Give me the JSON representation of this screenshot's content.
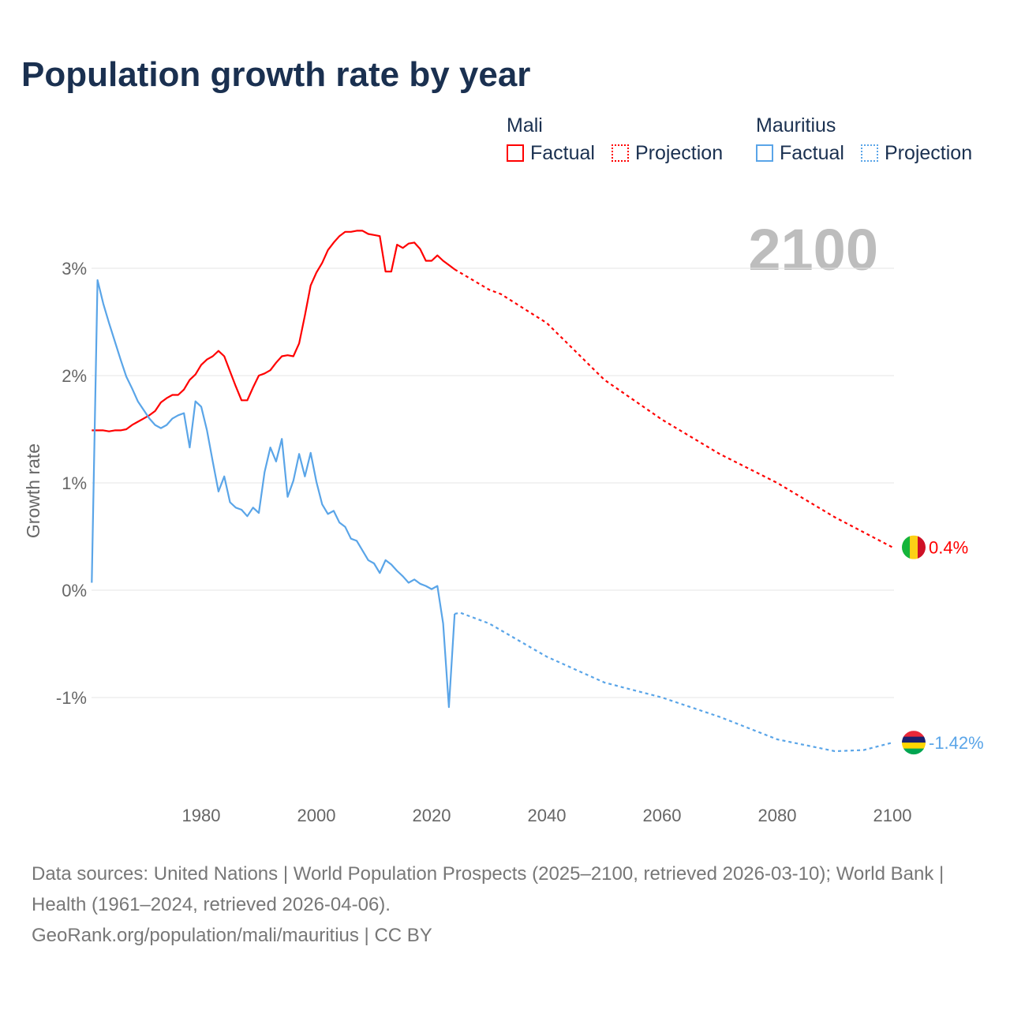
{
  "title": "Population growth rate by year",
  "legend": {
    "groups": [
      {
        "name": "Mali",
        "factual": "Factual",
        "projection": "Projection",
        "color": "#ff0000"
      },
      {
        "name": "Mauritius",
        "factual": "Factual",
        "projection": "Projection",
        "color": "#5aa5e8"
      }
    ]
  },
  "year_label": "2100",
  "source_line1": "Data sources: United Nations | World Population Prospects (2025–2100, retrieved 2026-03-10); World Bank | Health (1961–2024, retrieved 2026-04-06).",
  "source_line2": "GeoRank.org/population/mali/mauritius | CC BY",
  "chart_data": {
    "type": "line",
    "title": "Population growth rate by year",
    "xlabel": "",
    "ylabel": "Growth rate",
    "xlim": [
      1961,
      2100
    ],
    "ylim": [
      -1.8,
      3.6
    ],
    "xticks": [
      1980,
      2000,
      2020,
      2040,
      2060,
      2080,
      2100
    ],
    "xtick_labels": [
      "1980",
      "2000",
      "2020",
      "2040",
      "2060",
      "2080",
      "2100"
    ],
    "yticks": [
      3,
      2,
      1,
      0,
      -1
    ],
    "ytick_labels": [
      "3%",
      "2%",
      "1%",
      "0%",
      "-1%"
    ],
    "series": [
      {
        "name": "Mali Factual",
        "color": "#ff0000",
        "dashed": false,
        "start": 1961,
        "values": [
          1.49,
          1.49,
          1.49,
          1.48,
          1.49,
          1.49,
          1.5,
          1.54,
          1.57,
          1.6,
          1.63,
          1.67,
          1.75,
          1.79,
          1.82,
          1.82,
          1.87,
          1.96,
          2.01,
          2.1,
          2.15,
          2.18,
          2.23,
          2.18,
          2.04,
          1.9,
          1.77,
          1.77,
          1.89,
          2.0,
          2.02,
          2.05,
          2.12,
          2.18,
          2.19,
          2.18,
          2.3,
          2.56,
          2.84,
          2.96,
          3.05,
          3.17,
          3.24,
          3.3,
          3.34,
          3.34,
          3.35,
          3.35,
          3.32,
          3.31,
          3.3,
          2.97,
          2.97,
          3.22,
          3.19,
          3.23,
          3.24,
          3.18,
          3.07,
          3.07,
          3.12,
          3.07,
          3.03,
          2.99
        ]
      },
      {
        "name": "Mali Projection",
        "color": "#ff0000",
        "dashed": true,
        "x": [
          2024,
          2030,
          2032,
          2040,
          2050,
          2060,
          2070,
          2080,
          2090,
          2100
        ],
        "values": [
          2.99,
          2.8,
          2.76,
          2.49,
          1.96,
          1.59,
          1.27,
          1.0,
          0.68,
          0.4
        ]
      },
      {
        "name": "Mauritius Factual",
        "color": "#5aa5e8",
        "dashed": false,
        "start": 1961,
        "values": [
          0.07,
          2.89,
          2.67,
          2.49,
          2.32,
          2.15,
          1.99,
          1.88,
          1.76,
          1.68,
          1.6,
          1.54,
          1.51,
          1.54,
          1.6,
          1.63,
          1.65,
          1.33,
          1.76,
          1.71,
          1.49,
          1.2,
          0.92,
          1.06,
          0.82,
          0.77,
          0.75,
          0.69,
          0.77,
          0.72,
          1.1,
          1.33,
          1.2,
          1.41,
          0.87,
          1.02,
          1.27,
          1.06,
          1.28,
          1.01,
          0.8,
          0.71,
          0.74,
          0.63,
          0.59,
          0.48,
          0.46,
          0.37,
          0.28,
          0.25,
          0.16,
          0.28,
          0.24,
          0.18,
          0.13,
          0.07,
          0.1,
          0.06,
          0.04,
          0.01,
          0.04,
          -0.31,
          -1.09,
          -0.22
        ]
      },
      {
        "name": "Mauritius Projection",
        "color": "#5aa5e8",
        "dashed": true,
        "x": [
          2024,
          2025,
          2030,
          2040,
          2050,
          2060,
          2070,
          2080,
          2090,
          2095,
          2100
        ],
        "values": [
          -0.22,
          -0.21,
          -0.31,
          -0.62,
          -0.86,
          -1.0,
          -1.18,
          -1.39,
          -1.5,
          -1.49,
          -1.42
        ]
      }
    ],
    "end_labels": [
      {
        "country": "Mali",
        "text": "0.4%",
        "value": 0.4,
        "color": "#ff0000"
      },
      {
        "country": "Mauritius",
        "text": "-1.42%",
        "value": -1.42,
        "color": "#5aa5e8"
      }
    ]
  }
}
